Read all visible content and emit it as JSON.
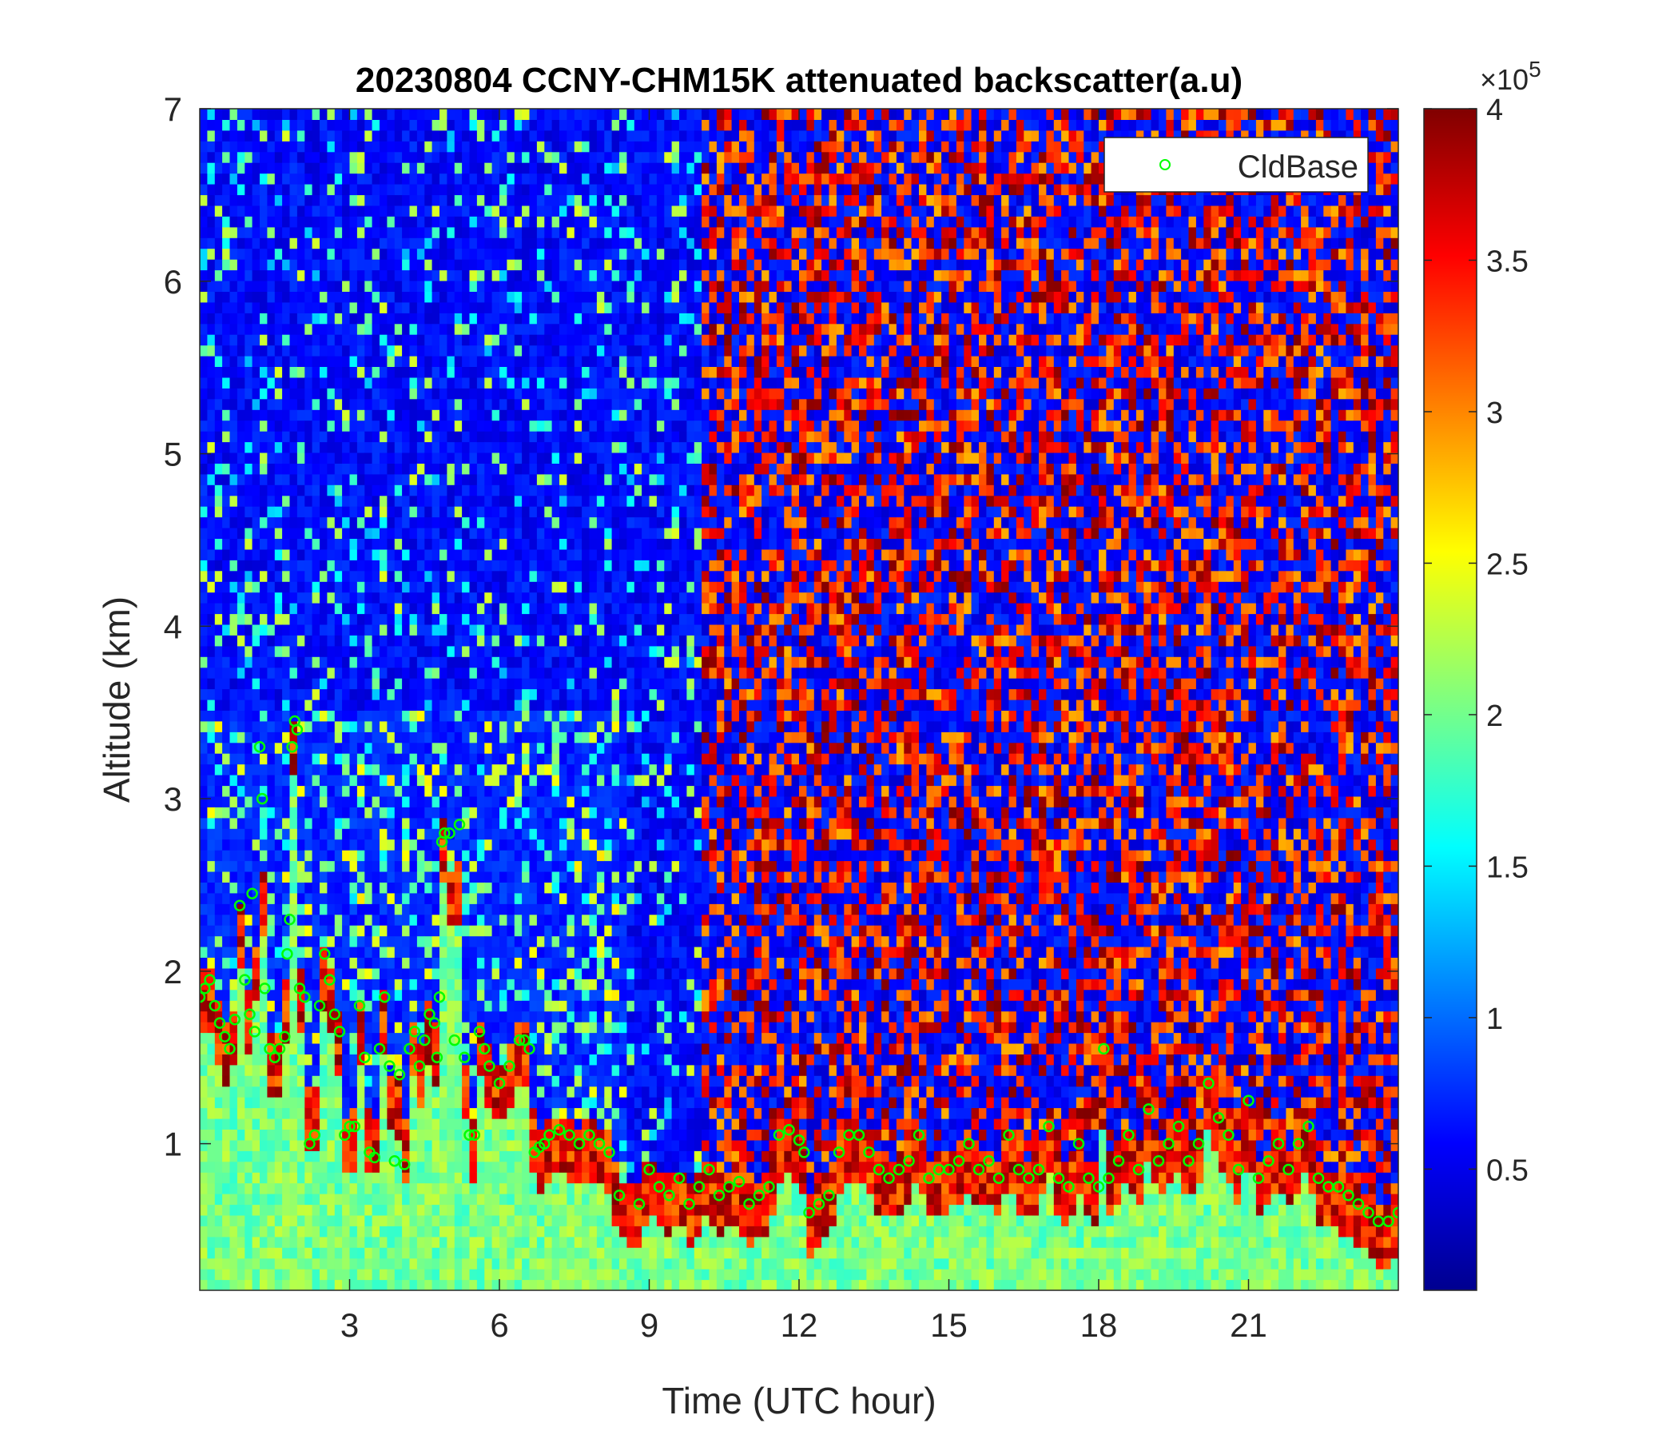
{
  "chart_data": {
    "type": "heatmap",
    "title": "20230804 CCNY-CHM15K attenuated backscatter(a.u)",
    "xlabel": "Time (UTC hour)",
    "ylabel": "Altitude (km)",
    "xlim": [
      0,
      24
    ],
    "ylim": [
      0.15,
      7
    ],
    "xticks": [
      3,
      6,
      9,
      12,
      15,
      18,
      21
    ],
    "xtick_labels": [
      "3",
      "6",
      "9",
      "12",
      "15",
      "18",
      "21"
    ],
    "yticks": [
      1,
      2,
      3,
      4,
      5,
      6,
      7
    ],
    "ytick_labels": [
      "1",
      "2",
      "3",
      "4",
      "5",
      "6",
      "7"
    ],
    "colorbar": {
      "colormap": "jet",
      "range": [
        0.1,
        4.0
      ],
      "ticks": [
        0.5,
        1,
        1.5,
        2,
        2.5,
        3,
        3.5,
        4
      ],
      "tick_labels": [
        "0.5",
        "1",
        "1.5",
        "2",
        "2.5",
        "3",
        "3.5",
        "4"
      ],
      "multiplier_prefix": "×10",
      "multiplier_exponent": "5"
    },
    "legend": {
      "placement": "top-right",
      "entries": [
        {
          "label": "CldBase",
          "marker": "open-circle",
          "color": "#00ff00"
        }
      ]
    },
    "grid": false,
    "colors": {
      "marker": "#00ff00",
      "axis": "#262626"
    },
    "cloud_base_series": {
      "name": "CldBase",
      "points": [
        [
          0.0,
          1.85
        ],
        [
          0.1,
          1.9
        ],
        [
          0.2,
          1.95
        ],
        [
          0.3,
          1.8
        ],
        [
          0.4,
          1.7
        ],
        [
          0.5,
          1.62
        ],
        [
          0.6,
          1.55
        ],
        [
          0.7,
          1.72
        ],
        [
          0.8,
          2.38
        ],
        [
          0.9,
          1.95
        ],
        [
          1.0,
          1.75
        ],
        [
          1.05,
          2.45
        ],
        [
          1.1,
          1.65
        ],
        [
          1.2,
          3.3
        ],
        [
          1.25,
          3.0
        ],
        [
          1.3,
          1.9
        ],
        [
          1.4,
          1.55
        ],
        [
          1.5,
          1.5
        ],
        [
          1.6,
          1.55
        ],
        [
          1.7,
          1.62
        ],
        [
          1.75,
          2.1
        ],
        [
          1.8,
          2.3
        ],
        [
          1.85,
          3.3
        ],
        [
          1.9,
          3.45
        ],
        [
          1.95,
          3.4
        ],
        [
          2.0,
          1.9
        ],
        [
          2.1,
          1.85
        ],
        [
          2.2,
          1.0
        ],
        [
          2.3,
          1.05
        ],
        [
          2.4,
          1.8
        ],
        [
          2.5,
          2.1
        ],
        [
          2.6,
          1.95
        ],
        [
          2.7,
          1.75
        ],
        [
          2.8,
          1.65
        ],
        [
          2.9,
          1.05
        ],
        [
          3.0,
          1.1
        ],
        [
          3.1,
          1.1
        ],
        [
          3.2,
          1.8
        ],
        [
          3.3,
          1.5
        ],
        [
          3.4,
          0.95
        ],
        [
          3.5,
          0.92
        ],
        [
          3.6,
          1.55
        ],
        [
          3.7,
          1.85
        ],
        [
          3.8,
          1.45
        ],
        [
          3.9,
          0.9
        ],
        [
          4.0,
          1.4
        ],
        [
          4.1,
          0.88
        ],
        [
          4.2,
          1.55
        ],
        [
          4.3,
          1.65
        ],
        [
          4.4,
          1.45
        ],
        [
          4.5,
          1.6
        ],
        [
          4.6,
          1.75
        ],
        [
          4.7,
          1.7
        ],
        [
          4.75,
          1.5
        ],
        [
          4.8,
          1.85
        ],
        [
          4.85,
          2.75
        ],
        [
          4.9,
          2.8
        ],
        [
          5.0,
          2.8
        ],
        [
          5.1,
          1.6
        ],
        [
          5.2,
          2.85
        ],
        [
          5.3,
          1.5
        ],
        [
          5.4,
          1.05
        ],
        [
          5.5,
          1.05
        ],
        [
          5.6,
          1.65
        ],
        [
          5.7,
          1.55
        ],
        [
          5.8,
          1.45
        ],
        [
          6.0,
          1.35
        ],
        [
          6.2,
          1.45
        ],
        [
          6.4,
          1.6
        ],
        [
          6.5,
          1.6
        ],
        [
          6.6,
          1.55
        ],
        [
          6.7,
          0.95
        ],
        [
          6.8,
          0.98
        ],
        [
          6.9,
          1.0
        ],
        [
          7.0,
          1.05
        ],
        [
          7.2,
          1.08
        ],
        [
          7.4,
          1.05
        ],
        [
          7.6,
          1.0
        ],
        [
          7.8,
          1.05
        ],
        [
          8.0,
          1.0
        ],
        [
          8.2,
          0.95
        ],
        [
          8.4,
          0.7
        ],
        [
          8.8,
          0.65
        ],
        [
          9.0,
          0.85
        ],
        [
          9.2,
          0.75
        ],
        [
          9.4,
          0.7
        ],
        [
          9.6,
          0.8
        ],
        [
          9.8,
          0.65
        ],
        [
          10.0,
          0.75
        ],
        [
          10.2,
          0.85
        ],
        [
          10.4,
          0.7
        ],
        [
          10.6,
          0.75
        ],
        [
          10.8,
          0.78
        ],
        [
          11.0,
          0.65
        ],
        [
          11.2,
          0.7
        ],
        [
          11.4,
          0.75
        ],
        [
          11.6,
          1.05
        ],
        [
          11.8,
          1.08
        ],
        [
          12.0,
          1.02
        ],
        [
          12.1,
          0.95
        ],
        [
          12.2,
          0.6
        ],
        [
          12.4,
          0.65
        ],
        [
          12.6,
          0.7
        ],
        [
          12.8,
          0.95
        ],
        [
          13.0,
          1.05
        ],
        [
          13.2,
          1.05
        ],
        [
          13.4,
          0.95
        ],
        [
          13.6,
          0.85
        ],
        [
          13.8,
          0.8
        ],
        [
          14.0,
          0.85
        ],
        [
          14.2,
          0.9
        ],
        [
          14.4,
          1.05
        ],
        [
          14.6,
          0.8
        ],
        [
          14.8,
          0.85
        ],
        [
          15.0,
          0.85
        ],
        [
          15.2,
          0.9
        ],
        [
          15.4,
          1.0
        ],
        [
          15.6,
          0.85
        ],
        [
          15.8,
          0.9
        ],
        [
          16.0,
          0.8
        ],
        [
          16.2,
          1.05
        ],
        [
          16.4,
          0.85
        ],
        [
          16.6,
          0.8
        ],
        [
          16.8,
          0.85
        ],
        [
          17.0,
          1.1
        ],
        [
          17.2,
          0.8
        ],
        [
          17.4,
          0.75
        ],
        [
          17.6,
          1.0
        ],
        [
          17.8,
          0.8
        ],
        [
          18.0,
          0.75
        ],
        [
          18.1,
          1.55
        ],
        [
          18.2,
          0.8
        ],
        [
          18.4,
          0.9
        ],
        [
          18.6,
          1.05
        ],
        [
          18.8,
          0.85
        ],
        [
          19.0,
          1.2
        ],
        [
          19.2,
          0.9
        ],
        [
          19.4,
          1.0
        ],
        [
          19.6,
          1.1
        ],
        [
          19.8,
          0.9
        ],
        [
          20.0,
          1.0
        ],
        [
          20.2,
          1.35
        ],
        [
          20.4,
          1.15
        ],
        [
          20.6,
          1.05
        ],
        [
          20.8,
          0.85
        ],
        [
          21.0,
          1.25
        ],
        [
          21.2,
          0.8
        ],
        [
          21.4,
          0.9
        ],
        [
          21.6,
          1.0
        ],
        [
          21.8,
          0.85
        ],
        [
          22.0,
          1.0
        ],
        [
          22.2,
          1.1
        ],
        [
          22.4,
          0.8
        ],
        [
          22.6,
          0.75
        ],
        [
          22.8,
          0.75
        ],
        [
          23.0,
          0.7
        ],
        [
          23.2,
          0.65
        ],
        [
          23.4,
          0.6
        ],
        [
          23.6,
          0.55
        ],
        [
          23.8,
          0.55
        ],
        [
          24.0,
          0.6
        ]
      ]
    }
  }
}
